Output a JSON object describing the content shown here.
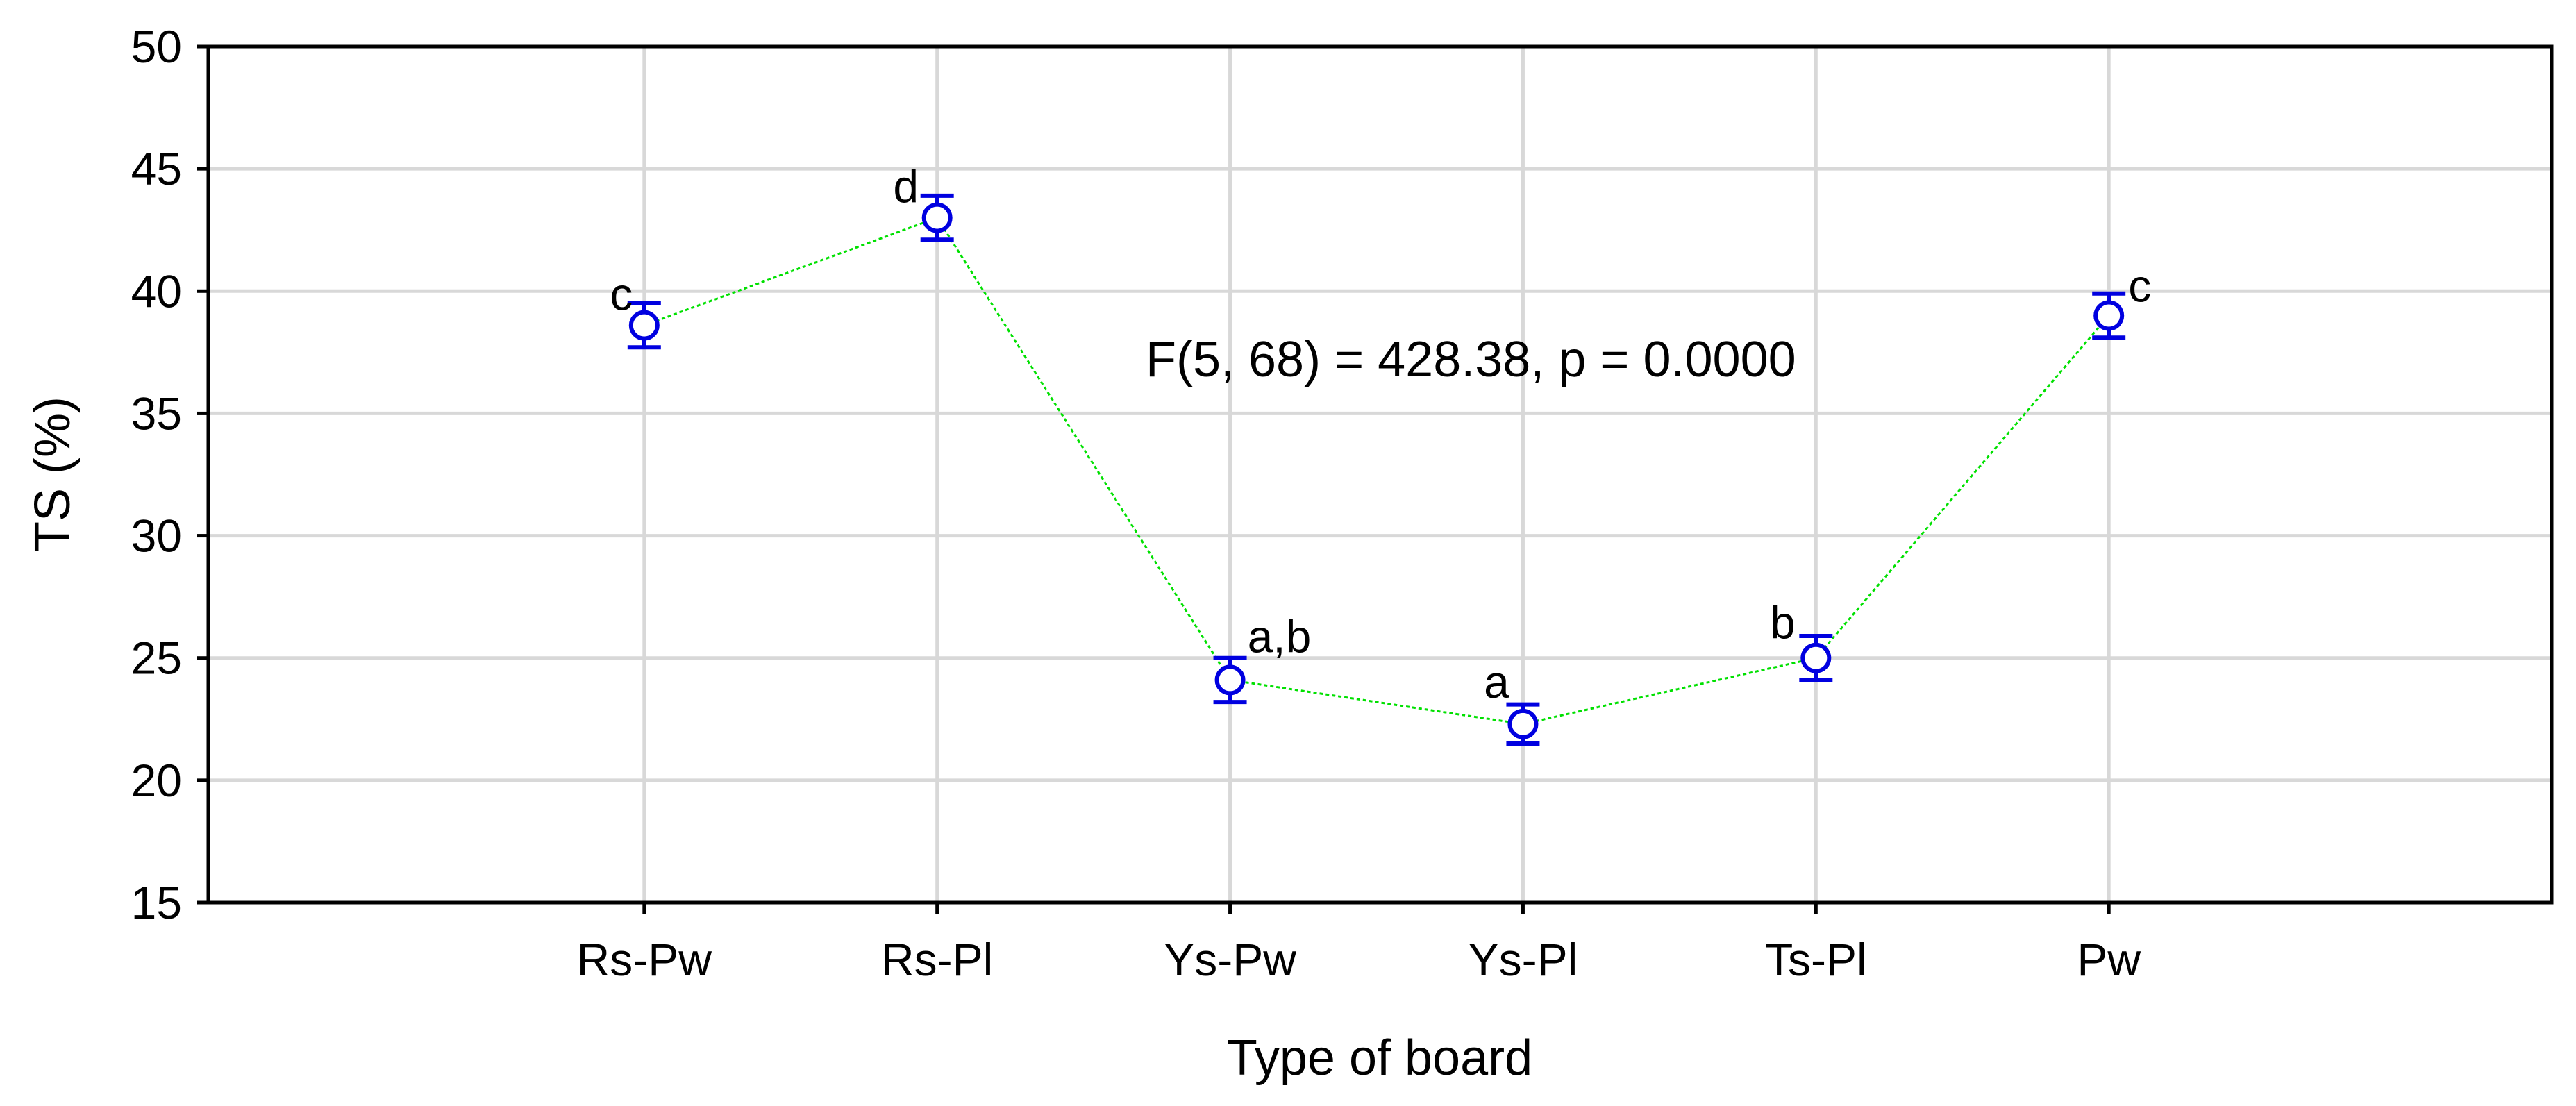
{
  "chart_data": {
    "type": "line",
    "categories": [
      "Rs-Pw",
      "Rs-Pl",
      "Ys-Pw",
      "Ys-Pl",
      "Ts-Pl",
      "Pw"
    ],
    "series": [
      {
        "values": [
          38.6,
          43.0,
          24.1,
          22.3,
          25.0,
          39.0
        ],
        "err_low": [
          37.7,
          42.1,
          23.2,
          21.5,
          24.1,
          38.1
        ],
        "err_high": [
          39.5,
          43.9,
          25.0,
          23.1,
          25.9,
          39.9
        ],
        "group_labels": [
          "c",
          "d",
          "a,b",
          "a",
          "b",
          "c"
        ]
      }
    ],
    "xlabel": "Type of board",
    "ylabel": "TS (%)",
    "ylim": [
      15,
      50
    ],
    "yticks": [
      "15",
      "20",
      "25",
      "30",
      "35",
      "40",
      "45",
      "50"
    ],
    "annotation": "F(5, 68) = 428.38, p = 0.0000",
    "grid": true,
    "colors": {
      "marker": "#0000e0",
      "line": "#00e000",
      "grid": "#d8d8d8",
      "axis": "#000000"
    }
  }
}
